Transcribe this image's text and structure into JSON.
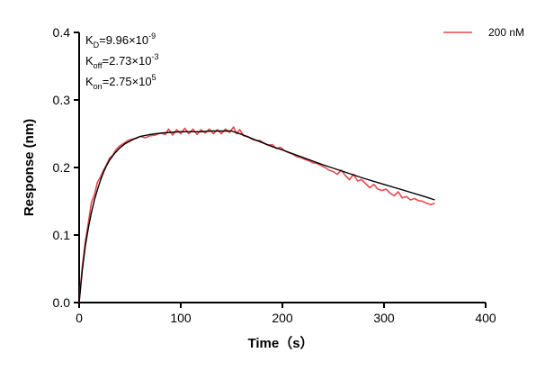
{
  "chart_data": {
    "type": "line",
    "title": "",
    "xlabel": "Time（s）",
    "ylabel": "Response (nm)",
    "xlim": [
      0,
      400
    ],
    "ylim": [
      0,
      0.4
    ],
    "xticks": [
      0,
      100,
      200,
      300,
      400
    ],
    "yticks": [
      0.0,
      0.1,
      0.2,
      0.3,
      0.4
    ],
    "xtick_labels": [
      "0",
      "100",
      "200",
      "300",
      "400"
    ],
    "ytick_labels": [
      "0.0",
      "0.1",
      "0.2",
      "0.3",
      "0.4"
    ],
    "grid": false,
    "legend_position": "top-right",
    "annotations": {
      "kd": {
        "base": "K",
        "sub": "D",
        "value": "=9.96×10",
        "exp": "-9"
      },
      "koff": {
        "base": "K",
        "sub": "off",
        "value": "=2.73×10",
        "exp": "-3"
      },
      "kon": {
        "base": "K",
        "sub": "on",
        "value": "=2.75×10",
        "exp": "5"
      }
    },
    "series": [
      {
        "name": "200 nM",
        "color": "#e8474b",
        "x": [
          0,
          3,
          6,
          9,
          12,
          15,
          18,
          21,
          24,
          27,
          30,
          33,
          36,
          40,
          44,
          48,
          52,
          56,
          60,
          65,
          70,
          75,
          80,
          85,
          88,
          92,
          96,
          100,
          104,
          108,
          112,
          116,
          120,
          124,
          128,
          132,
          136,
          140,
          144,
          148,
          152,
          155,
          158,
          162,
          166,
          170,
          174,
          178,
          182,
          186,
          190,
          194,
          198,
          202,
          206,
          210,
          214,
          218,
          222,
          226,
          230,
          234,
          238,
          242,
          246,
          250,
          254,
          258,
          262,
          266,
          270,
          274,
          278,
          282,
          286,
          290,
          294,
          298,
          302,
          306,
          310,
          314,
          318,
          322,
          326,
          330,
          334,
          338,
          342,
          346,
          350
        ],
        "y": [
          0.0,
          0.052,
          0.09,
          0.118,
          0.148,
          0.16,
          0.178,
          0.186,
          0.196,
          0.204,
          0.214,
          0.218,
          0.226,
          0.232,
          0.236,
          0.24,
          0.242,
          0.243,
          0.246,
          0.244,
          0.247,
          0.248,
          0.251,
          0.249,
          0.257,
          0.248,
          0.256,
          0.25,
          0.258,
          0.25,
          0.257,
          0.249,
          0.256,
          0.251,
          0.257,
          0.25,
          0.256,
          0.25,
          0.257,
          0.252,
          0.26,
          0.25,
          0.256,
          0.247,
          0.246,
          0.242,
          0.24,
          0.24,
          0.236,
          0.233,
          0.234,
          0.228,
          0.23,
          0.225,
          0.222,
          0.22,
          0.216,
          0.215,
          0.212,
          0.21,
          0.207,
          0.206,
          0.203,
          0.2,
          0.196,
          0.194,
          0.19,
          0.196,
          0.188,
          0.182,
          0.19,
          0.18,
          0.182,
          0.176,
          0.17,
          0.175,
          0.168,
          0.166,
          0.168,
          0.162,
          0.158,
          0.164,
          0.155,
          0.157,
          0.152,
          0.154,
          0.151,
          0.15,
          0.147,
          0.145,
          0.147
        ]
      }
    ],
    "fit": {
      "color": "#000000",
      "x": [
        0,
        3,
        6,
        9,
        12,
        15,
        18,
        21,
        24,
        27,
        30,
        35,
        40,
        45,
        50,
        55,
        60,
        70,
        80,
        90,
        100,
        110,
        120,
        130,
        140,
        150,
        160,
        170,
        180,
        190,
        200,
        220,
        240,
        260,
        280,
        300,
        320,
        340,
        350
      ],
      "y": [
        0.0,
        0.047,
        0.083,
        0.11,
        0.133,
        0.152,
        0.167,
        0.181,
        0.193,
        0.203,
        0.211,
        0.221,
        0.229,
        0.235,
        0.239,
        0.243,
        0.246,
        0.249,
        0.251,
        0.252,
        0.253,
        0.253,
        0.253,
        0.254,
        0.254,
        0.254,
        0.249,
        0.243,
        0.237,
        0.231,
        0.226,
        0.215,
        0.204,
        0.194,
        0.184,
        0.175,
        0.166,
        0.157,
        0.152
      ]
    }
  }
}
